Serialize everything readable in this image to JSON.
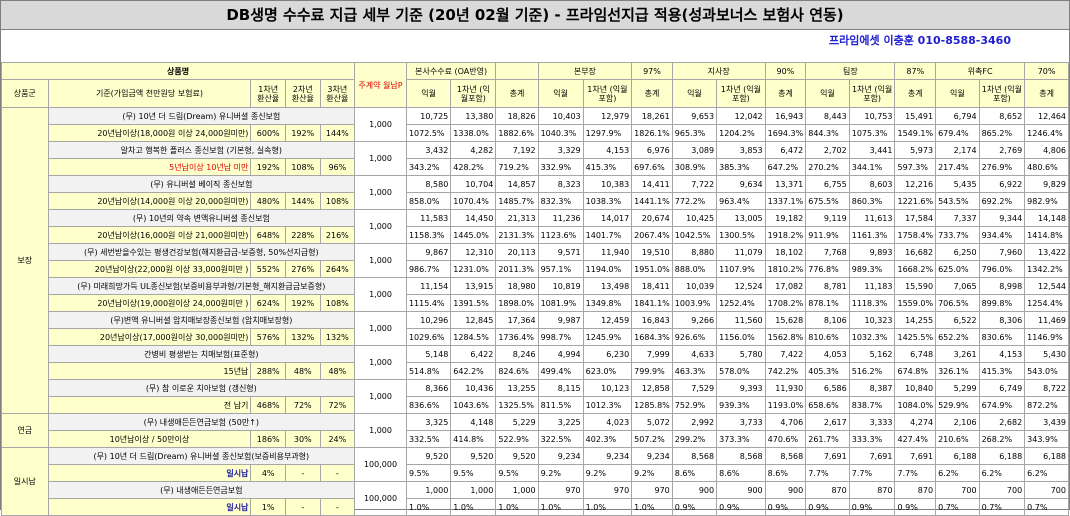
{
  "title": "DB생명 수수료 지급 세부 기준 (20년 02월 기준) - 프라임선지급 적용(성과보너스 보험사 연동)",
  "contact": "프라임에셋 이충훈 010-8588-3460",
  "header": {
    "product": "상품명",
    "group": "상품군",
    "basis": "기준(가입금액 천만원당 보험료)",
    "y1": "1차년 환산율",
    "y2": "2차년 환산율",
    "y3": "3차년 환산율",
    "mainPrem": "주계약 월납P",
    "companies": [
      {
        "name": "본사수수료 (OA반영)",
        "pct": ""
      },
      {
        "name": "본부장",
        "pct": "97%"
      },
      {
        "name": "지사장",
        "pct": "90%"
      },
      {
        "name": "팀장",
        "pct": "87%"
      },
      {
        "name": "위촉FC",
        "pct": "70%"
      }
    ],
    "sub": [
      "익월",
      "1차년 (익월포함)",
      "총계"
    ]
  },
  "groups": {
    "g1": "보장",
    "g2": "연금",
    "g3": "일시납"
  },
  "rows": [
    {
      "name": "(무) 10년 더 드림(Dream) 유니버셜 종신보험",
      "vals": [
        "10,725",
        "13,380",
        "18,826",
        "10,403",
        "12,979",
        "18,261",
        "9,653",
        "12,042",
        "16,943",
        "8,443",
        "10,753",
        "15,491",
        "6,794",
        "8,652",
        "12,464"
      ]
    },
    {
      "name": "20년납이상(18,000원 이상 24,000원미만)",
      "vals": [
        "1072.5%",
        "1338.0%",
        "1882.6%",
        "1040.3%",
        "1297.9%",
        "1826.1%",
        "965.3%",
        "1204.2%",
        "1694.3%",
        "844.3%",
        "1075.3%",
        "1549.1%",
        "679.4%",
        "865.2%",
        "1246.4%"
      ],
      "r": [
        "600%",
        "192%",
        "144%"
      ]
    },
    {
      "name": "알차고 행복한 플러스 종신보험 (기본형, 실속형)",
      "vals": [
        "3,432",
        "4,282",
        "7,192",
        "3,329",
        "4,153",
        "6,976",
        "3,089",
        "3,853",
        "6,472",
        "2,702",
        "3,441",
        "5,973",
        "2,174",
        "2,769",
        "4,806"
      ]
    },
    {
      "name": "5년납이상 10년납 미만",
      "vals": [
        "343.2%",
        "428.2%",
        "719.2%",
        "332.9%",
        "415.3%",
        "697.6%",
        "308.9%",
        "385.3%",
        "647.2%",
        "270.2%",
        "344.1%",
        "597.3%",
        "217.4%",
        "276.9%",
        "480.6%"
      ],
      "r": [
        "192%",
        "108%",
        "96%"
      ]
    },
    {
      "name": "(무) 유니버셜 베이직 종신보험",
      "vals": [
        "8,580",
        "10,704",
        "14,857",
        "8,323",
        "10,383",
        "14,411",
        "7,722",
        "9,634",
        "13,371",
        "6,755",
        "8,603",
        "12,216",
        "5,435",
        "6,922",
        "9,829"
      ]
    },
    {
      "name": "20년납이상(14,000원 이상 20,000원미만)",
      "vals": [
        "858.0%",
        "1070.4%",
        "1485.7%",
        "832.3%",
        "1038.3%",
        "1441.1%",
        "772.2%",
        "963.4%",
        "1337.1%",
        "675.5%",
        "860.3%",
        "1221.6%",
        "543.5%",
        "692.2%",
        "982.9%"
      ],
      "r": [
        "480%",
        "144%",
        "108%"
      ]
    },
    {
      "name": "(무) 10년의 약속 변액유니버셜 종신보험",
      "vals": [
        "11,583",
        "14,450",
        "21,313",
        "11,236",
        "14,017",
        "20,674",
        "10,425",
        "13,005",
        "19,182",
        "9,119",
        "11,613",
        "17,584",
        "7,337",
        "9,344",
        "14,148"
      ]
    },
    {
      "name": "20년납이상(16,000원 이상 21,000원미만)",
      "vals": [
        "1158.3%",
        "1445.0%",
        "2131.3%",
        "1123.6%",
        "1401.7%",
        "2067.4%",
        "1042.5%",
        "1300.5%",
        "1918.2%",
        "911.9%",
        "1161.3%",
        "1758.4%",
        "733.7%",
        "934.4%",
        "1414.8%"
      ],
      "r": [
        "648%",
        "228%",
        "216%"
      ]
    },
    {
      "name": "(무) 세번받을수있는 평생건강보험(해지환급금-보증형, 50%선지급형)",
      "vals": [
        "9,867",
        "12,310",
        "20,113",
        "9,571",
        "11,940",
        "19,510",
        "8,880",
        "11,079",
        "18,102",
        "7,768",
        "9,893",
        "16,682",
        "6,250",
        "7,960",
        "13,422"
      ]
    },
    {
      "name": "20년납이상(22,000원 이상 33,000원미만 )",
      "vals": [
        "986.7%",
        "1231.0%",
        "2011.3%",
        "957.1%",
        "1194.0%",
        "1951.0%",
        "888.0%",
        "1107.9%",
        "1810.2%",
        "776.8%",
        "989.3%",
        "1668.2%",
        "625.0%",
        "796.0%",
        "1342.2%"
      ],
      "r": [
        "552%",
        "276%",
        "264%"
      ]
    },
    {
      "name": "(무) 미래희망가득 UL종신보험(보증비용부과형/기본형_해지환급금보증형)",
      "vals": [
        "11,154",
        "13,915",
        "18,980",
        "10,819",
        "13,498",
        "18,411",
        "10,039",
        "12,524",
        "17,082",
        "8,781",
        "11,183",
        "15,590",
        "7,065",
        "8,998",
        "12,544"
      ]
    },
    {
      "name": "20년납이상(19,000원이상 24,000원미만 )",
      "vals": [
        "1115.4%",
        "1391.5%",
        "1898.0%",
        "1081.9%",
        "1349.8%",
        "1841.1%",
        "1003.9%",
        "1252.4%",
        "1708.2%",
        "878.1%",
        "1118.3%",
        "1559.0%",
        "706.5%",
        "899.8%",
        "1254.4%"
      ],
      "r": [
        "624%",
        "192%",
        "108%"
      ]
    },
    {
      "name": "(무)변액 유니버셜 암치매보장종신보험 (암치매보장형)",
      "vals": [
        "10,296",
        "12,845",
        "17,364",
        "9,987",
        "12,459",
        "16,843",
        "9,266",
        "11,560",
        "15,628",
        "8,106",
        "10,323",
        "14,255",
        "6,522",
        "8,306",
        "11,469"
      ]
    },
    {
      "name": "20년납이상(17,000원이상 30,000원미만)",
      "vals": [
        "1029.6%",
        "1284.5%",
        "1736.4%",
        "998.7%",
        "1245.9%",
        "1684.3%",
        "926.6%",
        "1156.0%",
        "1562.8%",
        "810.6%",
        "1032.3%",
        "1425.5%",
        "652.2%",
        "830.6%",
        "1146.9%"
      ],
      "r": [
        "576%",
        "132%",
        "132%"
      ]
    },
    {
      "name": "간병비 평생받는 치매보험(표준형)",
      "vals": [
        "5,148",
        "6,422",
        "8,246",
        "4,994",
        "6,230",
        "7,999",
        "4,633",
        "5,780",
        "7,422",
        "4,053",
        "5,162",
        "6,748",
        "3,261",
        "4,153",
        "5,430"
      ]
    },
    {
      "name": "15년납",
      "vals": [
        "514.8%",
        "642.2%",
        "824.6%",
        "499.4%",
        "623.0%",
        "799.9%",
        "463.3%",
        "578.0%",
        "742.2%",
        "405.3%",
        "516.2%",
        "674.8%",
        "326.1%",
        "415.3%",
        "543.0%"
      ],
      "r": [
        "288%",
        "48%",
        "48%"
      ]
    },
    {
      "name": "(무) 참 이로운 치아보험 (갱신형)",
      "vals": [
        "8,366",
        "10,436",
        "13,255",
        "8,115",
        "10,123",
        "12,858",
        "7,529",
        "9,393",
        "11,930",
        "6,586",
        "8,387",
        "10,840",
        "5,299",
        "6,749",
        "8,722"
      ]
    },
    {
      "name": "전 납기",
      "vals": [
        "836.6%",
        "1043.6%",
        "1325.5%",
        "811.5%",
        "1012.3%",
        "1285.8%",
        "752.9%",
        "939.3%",
        "1193.0%",
        "658.6%",
        "838.7%",
        "1084.0%",
        "529.9%",
        "674.9%",
        "872.2%"
      ],
      "r": [
        "468%",
        "72%",
        "72%"
      ]
    },
    {
      "name": "(무) 내생애든든연금보험 (50만↑)",
      "vals": [
        "3,325",
        "4,148",
        "5,229",
        "3,225",
        "4,023",
        "5,072",
        "2,992",
        "3,733",
        "4,706",
        "2,617",
        "3,333",
        "4,274",
        "2,106",
        "2,682",
        "3,439"
      ]
    },
    {
      "name": "10년납이상 / 50만이상",
      "vals": [
        "332.5%",
        "414.8%",
        "522.9%",
        "322.5%",
        "402.3%",
        "507.2%",
        "299.2%",
        "373.3%",
        "470.6%",
        "261.7%",
        "333.3%",
        "427.4%",
        "210.6%",
        "268.2%",
        "343.9%"
      ],
      "r": [
        "186%",
        "30%",
        "24%"
      ]
    },
    {
      "name": "(무) 10년 더 드림(Dream) 유니버셜 종신보험(보증비용부과형)",
      "vals": [
        "9,520",
        "9,520",
        "9,520",
        "9,234",
        "9,234",
        "9,234",
        "8,568",
        "8,568",
        "8,568",
        "7,691",
        "7,691",
        "7,691",
        "6,188",
        "6,188",
        "6,188"
      ]
    },
    {
      "name": "일시납",
      "vals": [
        "9.5%",
        "9.5%",
        "9.5%",
        "9.2%",
        "9.2%",
        "9.2%",
        "8.6%",
        "8.6%",
        "8.6%",
        "7.7%",
        "7.7%",
        "7.7%",
        "6.2%",
        "6.2%",
        "6.2%"
      ],
      "r": [
        "4%",
        "-",
        "-"
      ]
    },
    {
      "name": "(무) 내생애든든연금보험",
      "vals": [
        "1,000",
        "1,000",
        "1,000",
        "970",
        "970",
        "970",
        "900",
        "900",
        "900",
        "870",
        "870",
        "870",
        "700",
        "700",
        "700"
      ]
    },
    {
      "name": "일시납",
      "vals": [
        "1.0%",
        "1.0%",
        "1.0%",
        "1.0%",
        "1.0%",
        "1.0%",
        "0.9%",
        "0.9%",
        "0.9%",
        "0.9%",
        "0.9%",
        "0.9%",
        "0.7%",
        "0.7%",
        "0.7%"
      ],
      "r": [
        "1%",
        "-",
        "-"
      ]
    }
  ],
  "prem": [
    "1,000",
    "1,000",
    "1,000",
    "1,000",
    "1,000",
    "1,000",
    "1,000",
    "1,000",
    "1,000",
    "1,000",
    "100,000",
    "100,000"
  ]
}
